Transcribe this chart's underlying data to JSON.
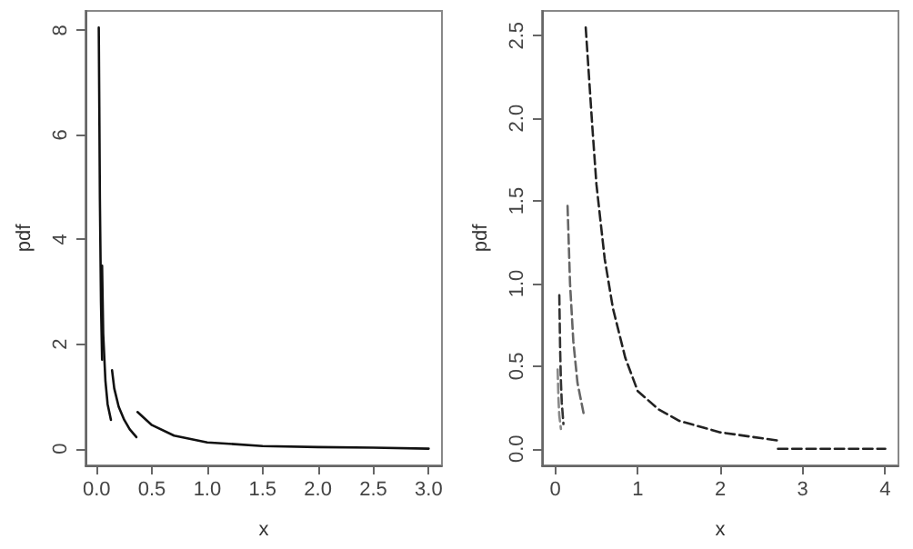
{
  "chart_data": [
    {
      "type": "line",
      "xlabel": "x",
      "ylabel": "pdf",
      "xlim": [
        -0.1,
        3.12
      ],
      "ylim": [
        -0.32,
        8.37
      ],
      "xticks": [
        {
          "value": 0,
          "label": "0.0"
        },
        {
          "value": 0.5,
          "label": "0.5"
        },
        {
          "value": 1,
          "label": "1.0"
        },
        {
          "value": 1.5,
          "label": "1.5"
        },
        {
          "value": 2,
          "label": "2.0"
        },
        {
          "value": 2.5,
          "label": "2.5"
        },
        {
          "value": 3,
          "label": "3.0"
        }
      ],
      "yticks": [
        0,
        2,
        4,
        6,
        8
      ],
      "line_style": "solid",
      "marker": "none",
      "grid": false,
      "series": [
        {
          "color": "#111111",
          "x": [
            0.02,
            0.025,
            0.03,
            0.04,
            0.05
          ],
          "values": [
            8.05,
            6.5,
            4.8,
            2.8,
            1.7
          ]
        },
        {
          "color": "#111111",
          "x": [
            0.05,
            0.06,
            0.08,
            0.1,
            0.13
          ],
          "values": [
            3.5,
            2.2,
            1.3,
            0.85,
            0.55
          ]
        },
        {
          "color": "#111111",
          "x": [
            0.14,
            0.16,
            0.2,
            0.25,
            0.3,
            0.36
          ],
          "values": [
            1.5,
            1.15,
            0.8,
            0.55,
            0.37,
            0.22
          ]
        },
        {
          "color": "#111111",
          "x": [
            0.37,
            0.5,
            0.7,
            1.0,
            1.5,
            2.0,
            2.5,
            3.0
          ],
          "values": [
            0.7,
            0.45,
            0.25,
            0.12,
            0.05,
            0.03,
            0.02,
            0.0
          ]
        }
      ]
    },
    {
      "type": "line",
      "xlabel": "x",
      "ylabel": "pdf",
      "xlim": [
        -0.16,
        4.16
      ],
      "ylim": [
        -0.1,
        2.65
      ],
      "xticks": [
        0,
        1,
        2,
        3,
        4
      ],
      "yticks": [
        {
          "value": 0,
          "label": "0.0"
        },
        {
          "value": 0.5,
          "label": "0.5"
        },
        {
          "value": 1,
          "label": "1.0"
        },
        {
          "value": 1.5,
          "label": "1.5"
        },
        {
          "value": 2,
          "label": "2.0"
        },
        {
          "value": 2.5,
          "label": "2.5"
        }
      ],
      "line_style": "dashed",
      "marker": "none",
      "grid": false,
      "series": [
        {
          "color": "#888888",
          "x": [
            0.03,
            0.04,
            0.05,
            0.07
          ],
          "values": [
            0.48,
            0.3,
            0.2,
            0.12
          ]
        },
        {
          "color": "#333333",
          "x": [
            0.05,
            0.06,
            0.07,
            0.08,
            0.1
          ],
          "values": [
            0.93,
            0.6,
            0.4,
            0.28,
            0.15
          ]
        },
        {
          "color": "#666666",
          "x": [
            0.15,
            0.18,
            0.22,
            0.27,
            0.35
          ],
          "values": [
            1.47,
            1.0,
            0.65,
            0.4,
            0.2
          ]
        },
        {
          "color": "#222222",
          "x": [
            0.37,
            0.45,
            0.5,
            0.6,
            0.7,
            0.85,
            1.0,
            1.25,
            1.5,
            2.0,
            2.7
          ],
          "values": [
            2.55,
            1.95,
            1.6,
            1.15,
            0.85,
            0.55,
            0.35,
            0.24,
            0.17,
            0.1,
            0.05
          ]
        },
        {
          "color": "#222222",
          "x": [
            2.7,
            3.3,
            4.0
          ],
          "values": [
            0.0,
            0.0,
            0.0
          ]
        }
      ]
    }
  ]
}
